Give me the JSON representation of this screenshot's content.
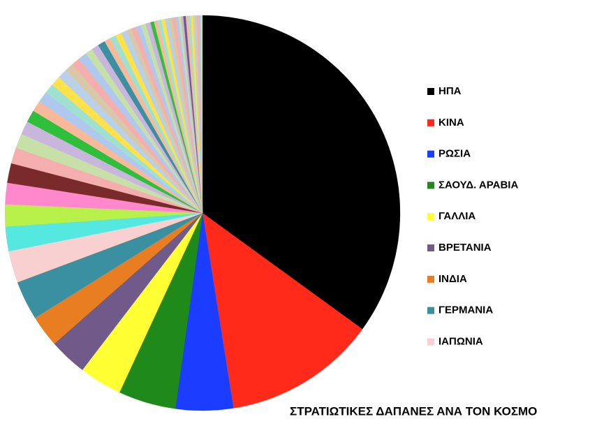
{
  "chart_data": {
    "type": "pie",
    "title": "ΣΤΡΑΤΙΩΤΙΚΕΣ ΔΑΠΑΝΕΣ ΑΝΑ ΤΟΝ ΚΟΣΜΟ",
    "categories": [
      "ΗΠΑ",
      "ΚΙΝΑ",
      "ΡΩΣΙΑ",
      "ΣΑΟΥΔ. ΑΡΑΒΙΑ",
      "ΓΑΛΛΙΑ",
      "ΒΡΕΤΑΝΙΑ",
      "ΙΝΔΙΑ",
      "ΓΕΡΜΑΝΙΑ",
      "ΙΑΠΩΝΙΑ",
      null,
      null,
      null,
      null,
      null,
      null,
      null,
      null,
      null,
      null,
      null,
      null,
      null,
      null,
      null,
      null,
      null,
      null,
      null,
      null,
      null,
      null,
      null,
      null,
      null,
      null,
      null,
      null,
      null,
      null,
      null,
      null,
      null,
      null,
      null,
      null,
      null,
      null,
      null,
      null,
      null,
      null,
      null,
      null,
      null,
      null,
      null
    ],
    "values": [
      35,
      12.5,
      4.7,
      4.7,
      3.5,
      3.1,
      2.6,
      3.2,
      2.6,
      2,
      1.8,
      1.75,
      1.6,
      1.3,
      1.2,
      1.1,
      1.0,
      0.9,
      0.9,
      0.8,
      0.8,
      0.8,
      0.7,
      0.7,
      0.7,
      0.6,
      0.6,
      0.6,
      0.5,
      0.5,
      0.5,
      0.5,
      0.4,
      0.4,
      0.4,
      0.4,
      0.4,
      0.3,
      0.3,
      0.3,
      0.3,
      0.3,
      0.3,
      0.3,
      0.2,
      0.2,
      0.2,
      0.2,
      0.2,
      0.2,
      0.2,
      0.15,
      0.15,
      0.15,
      0.15,
      0.15
    ],
    "colors": [
      "#000000",
      "#ff2a1a",
      "#1a3dff",
      "#1f8a1a",
      "#ffff33",
      "#6f5a8a",
      "#e87d22",
      "#3a8fa0",
      "#f9d0d0",
      "#55e8e0",
      "#b8f04a",
      "#ff88cc",
      "#7a2a2a",
      "#f4aeae",
      "#c6e0a8",
      "#c9b6dc",
      "#2fbf3a",
      "#f7b99a",
      "#aec8ee",
      "#9fe0d0",
      "#ffe14a",
      "#b8d0e8",
      "#d8c8a8",
      "#f4aeae",
      "#aec8ee",
      "#c6e0a8",
      "#c9b6dc",
      "#3a8fa0",
      "#f7b99a",
      "#9fe0d0",
      "#ffe14a",
      "#b8d0e8",
      "#d8c8a8",
      "#f4aeae",
      "#aec8ee",
      "#c6e0a8",
      "#c9b6dc",
      "#2fbf3a",
      "#f7b99a",
      "#9fe0d0",
      "#ffe14a",
      "#b8d0e8",
      "#d8c8a8",
      "#f4aeae",
      "#aec8ee",
      "#c6e0a8",
      "#c9b6dc",
      "#6f5a8a",
      "#f7b99a",
      "#9fe0d0",
      "#ffe14a",
      "#b8d0e8",
      "#d8c8a8",
      "#f4aeae",
      "#aec8ee",
      "#c6e0a8"
    ]
  }
}
